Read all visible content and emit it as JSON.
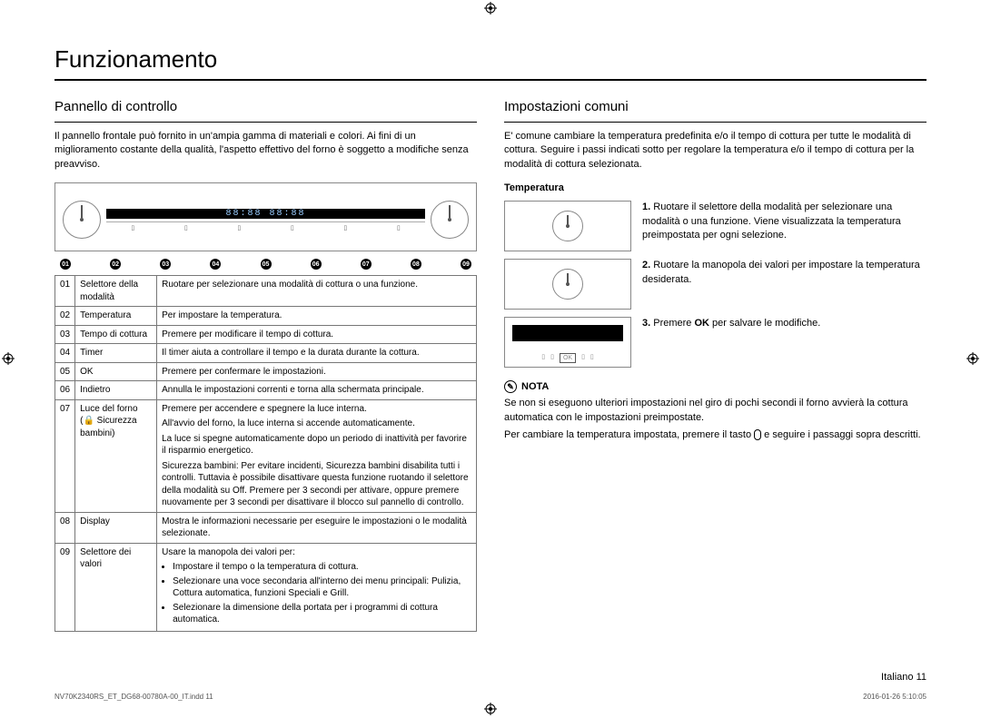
{
  "title": "Funzionamento",
  "page_number_label": "Italiano  11",
  "footer_left": "NV70K2340RS_ET_DG68-00780A-00_IT.indd   11",
  "footer_right": "2016-01-26   5:10:05",
  "left": {
    "heading": "Pannello di controllo",
    "intro": "Il pannello frontale può fornito in un'ampia gamma di materiali e colori. Ai fini di un miglioramento costante della qualità, l'aspetto effettivo del forno è soggetto a modifiche senza preavviso.",
    "panel_nums": [
      "01",
      "02",
      "03",
      "04",
      "05",
      "06",
      "07",
      "08",
      "09"
    ],
    "display_text": "88:88  88:88",
    "rows": [
      {
        "num": "01",
        "name": "Selettore della modalità",
        "desc": [
          "Ruotare per selezionare una modalità di cottura o una funzione."
        ]
      },
      {
        "num": "02",
        "name": "Temperatura",
        "desc": [
          "Per impostare la temperatura."
        ]
      },
      {
        "num": "03",
        "name": "Tempo di cottura",
        "desc": [
          "Premere per modificare il tempo di cottura."
        ]
      },
      {
        "num": "04",
        "name": "Timer",
        "desc": [
          "Il timer aiuta a controllare il tempo e la durata durante la cottura."
        ]
      },
      {
        "num": "05",
        "name": "OK",
        "desc": [
          "Premere per confermare le impostazioni."
        ]
      },
      {
        "num": "06",
        "name": "Indietro",
        "desc": [
          "Annulla le impostazioni correnti e torna alla schermata principale."
        ]
      },
      {
        "num": "07",
        "name": "Luce del forno (🔒 Sicurezza bambini)",
        "desc": [
          "Premere per accendere e spegnere la luce interna.",
          "All'avvio del forno, la luce interna si accende automaticamente.",
          "La luce si spegne automaticamente dopo un periodo di inattività per favorire il risparmio energetico.",
          "Sicurezza bambini: Per evitare incidenti, Sicurezza bambini disabilita tutti i controlli. Tuttavia è possibile disattivare questa funzione ruotando il selettore della modalità su Off. Premere per 3 secondi per attivare, oppure premere nuovamente per 3 secondi per disattivare il blocco sul pannello di controllo."
        ]
      },
      {
        "num": "08",
        "name": "Display",
        "desc": [
          "Mostra le informazioni necessarie per eseguire le impostazioni o le modalità selezionate."
        ]
      },
      {
        "num": "09",
        "name": "Selettore dei valori",
        "desc_intro": "Usare la manopola dei valori per:",
        "desc_list": [
          "Impostare il tempo o la temperatura di cottura.",
          "Selezionare una voce secondaria all'interno dei menu principali: Pulizia, Cottura automatica, funzioni Speciali e Grill.",
          "Selezionare la dimensione della portata per i programmi di cottura automatica."
        ]
      }
    ]
  },
  "right": {
    "heading": "Impostazioni comuni",
    "intro": "E' comune cambiare la temperatura predefinita e/o il tempo di cottura per tutte le modalità di cottura. Seguire i passi indicati sotto per regolare la temperatura e/o il tempo di cottura per la modalità di cottura selezionata.",
    "subheading": "Temperatura",
    "steps": [
      {
        "n": "1.",
        "text": "Ruotare il selettore della modalità per selezionare una modalità o una funzione. Viene visualizzata la temperatura preimpostata per ogni selezione."
      },
      {
        "n": "2.",
        "text": "Ruotare la manopola dei valori per impostare la temperatura desiderata."
      },
      {
        "n": "3.",
        "text_pre": "Premere ",
        "bold": "OK",
        "text_post": " per salvare le modifiche."
      }
    ],
    "note_label": "NOTA",
    "note_body_1": "Se non si eseguono ulteriori impostazioni nel giro di pochi secondi il forno avvierà la cottura automatica con le impostazioni preimpostate.",
    "note_body_2_pre": "Per cambiare la temperatura impostata, premere il tasto ",
    "note_body_2_post": " e seguire i passaggi sopra descritti."
  }
}
